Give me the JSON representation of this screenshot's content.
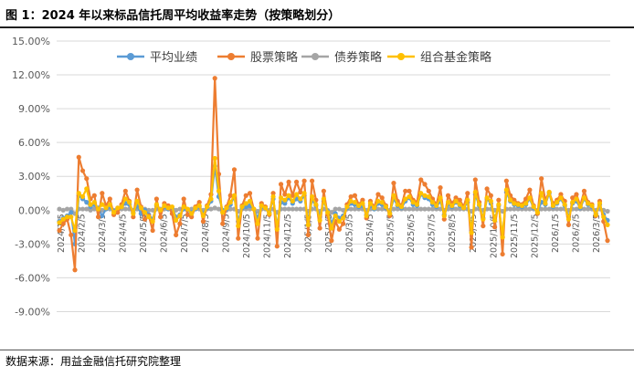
{
  "figure_title": "图 1：2024 年以来标品信托周平均收益率走势（按策略划分）",
  "source_note": "数据来源：用益金融信托研究院整理",
  "colors": {
    "avg": "#5b9bd5",
    "stock": "#ed7d31",
    "bond": "#a5a5a5",
    "combo": "#ffc000"
  },
  "chart_data": {
    "type": "line",
    "title": "",
    "xlabel": "",
    "ylabel": "",
    "ylim": [
      -10.5,
      15.0
    ],
    "y_ticks": [
      15,
      12,
      9,
      6,
      3,
      0,
      -3,
      -6,
      -9
    ],
    "y_tick_labels": [
      "15.00%",
      "12.00%",
      "9.00%",
      "6.00%",
      "3.00%",
      "0.00%",
      "-3.00%",
      "-6.00%",
      "-9.00%"
    ],
    "grid": true,
    "legend": "top-center",
    "x_tick_labels": [
      "2024/1/5",
      "2024/2/5",
      "2024/3/5",
      "2024/4/5",
      "2024/5/5",
      "2024/6/5",
      "2024/7/5",
      "2024/8/5",
      "2024/9/5",
      "2024/10/5",
      "2024/11/5",
      "2024/12/5",
      "2025/1/5",
      "2025/2/5",
      "2025/3/5",
      "2025/4/5",
      "2025/5/5",
      "2025/6/5",
      "2025/7/5",
      "2025/8/5",
      "2025/9/5",
      "2025/10/5",
      "2025/11/5",
      "2025/12/5",
      "2026/1/5",
      "2026/2/5",
      "2026/3/5"
    ],
    "series": [
      {
        "name": "平均业绩",
        "key": "avg",
        "values": [
          -1.0,
          -0.7,
          -0.5,
          -0.2,
          -3.0,
          1.3,
          1.0,
          0.7,
          0.3,
          0.5,
          0.2,
          -0.5,
          0.1,
          0.3,
          -0.1,
          0.2,
          0.3,
          0.6,
          0.5,
          -0.2,
          0.4,
          -0.3,
          0.0,
          -0.4,
          -0.8,
          0.4,
          0.0,
          0.3,
          0.1,
          0.2,
          -0.6,
          -0.4,
          0.1,
          0.0,
          -0.2,
          0.1,
          0.3,
          -0.3,
          0.2,
          0.8,
          3.9,
          1.2,
          0.0,
          0.1,
          0.5,
          1.2,
          -1.0,
          0.2,
          0.3,
          0.4,
          0.1,
          -0.7,
          0.3,
          0.2,
          -0.2,
          1.0,
          -1.4,
          0.7,
          0.6,
          1.1,
          0.6,
          1.0,
          0.8,
          1.3,
          -1.0,
          0.9,
          0.4,
          -0.6,
          0.8,
          -0.1,
          -1.2,
          -0.3,
          -0.7,
          -0.5,
          0.2,
          0.6,
          0.5,
          0.3,
          0.4,
          -0.4,
          0.4,
          0.1,
          0.6,
          0.5,
          0.2,
          -0.2,
          1.0,
          0.4,
          0.2,
          0.8,
          1.1,
          0.5,
          0.4,
          1.4,
          1.1,
          1.0,
          0.5,
          0.3,
          0.8,
          -0.4,
          0.5,
          0.3,
          0.7,
          0.4,
          0.2,
          0.7,
          -1.8,
          1.4,
          0.4,
          -0.7,
          1.0,
          0.6,
          -0.8,
          0.4,
          -2.4,
          1.6,
          0.8,
          0.5,
          0.4,
          0.3,
          0.5,
          1.0,
          0.2,
          -0.1,
          0.7,
          0.5,
          1.5,
          0.3,
          0.6,
          1.0,
          0.4,
          -0.6,
          0.6,
          0.8,
          0.2,
          1.0,
          0.5,
          0.3,
          -0.3,
          0.5,
          -0.4,
          -0.9
        ]
      },
      {
        "name": "股票策略",
        "key": "stock",
        "values": [
          -1.8,
          -1.2,
          -0.8,
          -2.2,
          -5.3,
          4.7,
          3.5,
          2.8,
          1.0,
          1.3,
          -0.6,
          1.5,
          0.4,
          1.0,
          -0.4,
          -0.2,
          0.5,
          1.7,
          0.8,
          -0.6,
          1.8,
          0.3,
          -0.8,
          -0.5,
          -1.8,
          1.0,
          -0.6,
          0.6,
          0.4,
          -0.3,
          -2.2,
          -1.2,
          1.0,
          -0.4,
          -0.6,
          0.3,
          0.7,
          -1.0,
          0.4,
          1.4,
          11.7,
          3.2,
          -1.2,
          0.3,
          1.3,
          3.6,
          -2.5,
          0.4,
          1.3,
          1.5,
          0.1,
          -2.5,
          0.6,
          0.3,
          -0.4,
          1.5,
          -3.2,
          2.3,
          1.4,
          2.5,
          1.3,
          2.5,
          1.6,
          2.6,
          -2.2,
          2.6,
          0.9,
          -1.6,
          1.7,
          -0.4,
          -2.7,
          -1.0,
          -1.7,
          -1.2,
          0.5,
          1.2,
          1.3,
          0.5,
          0.9,
          -0.7,
          0.8,
          0.3,
          1.4,
          1.1,
          0.4,
          -0.5,
          2.4,
          0.8,
          0.4,
          1.7,
          1.7,
          0.9,
          0.7,
          2.7,
          2.3,
          1.7,
          1.0,
          0.5,
          2.0,
          -0.8,
          1.3,
          0.6,
          1.1,
          0.9,
          0.3,
          1.5,
          -3.3,
          2.7,
          0.7,
          -1.4,
          1.9,
          1.3,
          -1.5,
          0.9,
          -3.9,
          2.6,
          1.3,
          0.9,
          0.6,
          0.5,
          1.0,
          1.8,
          0.4,
          -0.3,
          2.8,
          0.9,
          1.6,
          0.6,
          0.9,
          1.4,
          0.8,
          -1.3,
          1.1,
          1.4,
          0.4,
          1.7,
          0.7,
          0.5,
          -0.5,
          0.8,
          -1.0,
          -2.7
        ]
      },
      {
        "name": "债券策略",
        "key": "bond",
        "values": [
          0.1,
          0.0,
          0.1,
          0.1,
          -0.3,
          0.1,
          0.1,
          0.1,
          0.0,
          0.1,
          0.1,
          0.0,
          0.1,
          0.1,
          0.0,
          0.1,
          0.1,
          0.1,
          0.1,
          0.0,
          0.1,
          0.0,
          0.1,
          0.0,
          0.0,
          0.1,
          0.1,
          0.1,
          0.1,
          0.1,
          0.0,
          0.1,
          0.1,
          0.0,
          0.1,
          0.1,
          0.1,
          0.0,
          0.1,
          0.1,
          0.2,
          0.1,
          -0.2,
          0.0,
          0.1,
          0.1,
          -0.1,
          0.1,
          0.1,
          0.1,
          0.1,
          -0.1,
          0.1,
          0.1,
          0.0,
          0.1,
          -0.2,
          0.1,
          0.1,
          0.1,
          0.1,
          0.1,
          0.1,
          0.1,
          -0.1,
          0.1,
          0.1,
          -0.1,
          0.1,
          0.0,
          -0.2,
          0.1,
          0.1,
          0.0,
          0.1,
          0.1,
          0.1,
          0.1,
          0.1,
          0.0,
          0.1,
          0.1,
          0.1,
          0.1,
          0.1,
          0.0,
          0.1,
          0.1,
          0.1,
          0.1,
          0.1,
          0.1,
          0.1,
          0.1,
          0.1,
          0.1,
          0.1,
          0.1,
          0.1,
          0.0,
          0.1,
          0.1,
          0.1,
          0.1,
          0.1,
          0.1,
          -0.1,
          0.1,
          0.1,
          0.0,
          0.1,
          0.1,
          0.0,
          0.1,
          -0.1,
          0.1,
          0.1,
          0.1,
          0.1,
          0.1,
          0.1,
          0.1,
          0.1,
          0.0,
          0.1,
          0.1,
          0.1,
          0.1,
          0.1,
          0.1,
          0.1,
          0.0,
          0.1,
          0.1,
          0.1,
          0.1,
          0.1,
          0.1,
          0.0,
          0.1,
          0.0,
          -0.1
        ]
      },
      {
        "name": "组合基金策略",
        "key": "combo",
        "values": [
          -1.1,
          -0.8,
          -0.6,
          -0.6,
          -1.8,
          1.5,
          1.2,
          1.9,
          0.5,
          0.7,
          0.1,
          0.5,
          0.2,
          0.5,
          -0.2,
          0.2,
          0.3,
          1.0,
          0.7,
          -0.3,
          0.8,
          0.2,
          -0.2,
          -0.6,
          -1.0,
          0.5,
          0.0,
          0.4,
          0.2,
          0.3,
          -0.9,
          -0.5,
          0.3,
          0.1,
          -0.3,
          0.2,
          0.4,
          -0.5,
          0.3,
          1.0,
          4.6,
          1.7,
          -0.2,
          0.2,
          0.7,
          1.3,
          -1.4,
          0.3,
          0.6,
          0.8,
          0.1,
          -1.2,
          0.4,
          0.2,
          -0.3,
          1.2,
          -1.7,
          1.1,
          0.9,
          1.3,
          0.8,
          1.4,
          1.0,
          1.5,
          -1.3,
          1.2,
          0.5,
          -0.9,
          1.0,
          -0.2,
          -1.6,
          -0.5,
          -1.0,
          -0.7,
          0.3,
          0.8,
          0.7,
          0.4,
          0.6,
          -0.5,
          0.6,
          0.2,
          0.8,
          0.7,
          0.3,
          -0.3,
          1.3,
          0.5,
          0.3,
          1.0,
          1.2,
          0.7,
          0.5,
          1.5,
          1.3,
          1.2,
          0.7,
          0.4,
          1.1,
          -0.5,
          0.7,
          0.4,
          0.8,
          0.5,
          0.2,
          0.9,
          -2.0,
          1.6,
          0.5,
          -0.8,
          1.1,
          0.8,
          -0.9,
          0.5,
          -2.4,
          1.8,
          0.9,
          0.6,
          0.5,
          0.4,
          0.6,
          1.1,
          0.3,
          -0.2,
          1.5,
          0.6,
          1.6,
          0.4,
          0.7,
          1.1,
          0.5,
          -0.8,
          0.7,
          1.0,
          0.3,
          1.1,
          0.6,
          0.4,
          -0.4,
          0.6,
          -0.6,
          -1.3
        ]
      }
    ]
  }
}
